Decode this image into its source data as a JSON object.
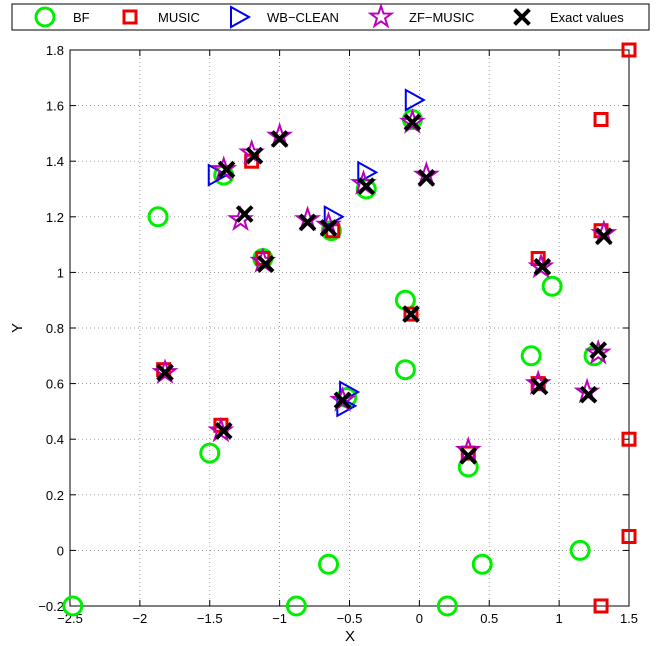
{
  "chart_data": {
    "type": "scatter",
    "title": "",
    "xlabel": "X",
    "ylabel": "Y",
    "xlim": [
      -2.5,
      1.5
    ],
    "ylim": [
      -0.2,
      1.8
    ],
    "xticks": [
      -2.5,
      -2,
      -1.5,
      -1,
      -0.5,
      0,
      0.5,
      1,
      1.5
    ],
    "yticks": [
      -0.2,
      0,
      0.2,
      0.4,
      0.6,
      0.8,
      1,
      1.2,
      1.4,
      1.6,
      1.8
    ],
    "xtick_labels": [
      "−2.5",
      "−2",
      "−1.5",
      "−1",
      "−0.5",
      "0",
      "0.5",
      "1",
      "1.5"
    ],
    "ytick_labels": [
      "−0.2",
      "0",
      "0.2",
      "0.4",
      "0.6",
      "0.8",
      "1",
      "1.2",
      "1.4",
      "1.6",
      "1.8"
    ],
    "grid": true,
    "legend_position": "top",
    "series": [
      {
        "name": "BF",
        "marker": "circle",
        "color": "#00ee00",
        "points": [
          [
            -2.48,
            -0.2
          ],
          [
            -1.87,
            1.2
          ],
          [
            -1.5,
            0.35
          ],
          [
            -1.4,
            1.35
          ],
          [
            -1.12,
            1.05
          ],
          [
            -0.88,
            -0.2
          ],
          [
            -0.65,
            -0.05
          ],
          [
            -0.63,
            1.15
          ],
          [
            -0.52,
            0.55
          ],
          [
            -0.38,
            1.3
          ],
          [
            -0.1,
            0.9
          ],
          [
            -0.1,
            0.65
          ],
          [
            -0.05,
            1.55
          ],
          [
            0.2,
            -0.2
          ],
          [
            0.35,
            0.3
          ],
          [
            0.45,
            -0.05
          ],
          [
            0.8,
            0.7
          ],
          [
            0.95,
            0.95
          ],
          [
            1.15,
            0.0
          ],
          [
            1.25,
            0.7
          ]
        ]
      },
      {
        "name": "MUSIC",
        "marker": "square",
        "color": "#ee0000",
        "points": [
          [
            -1.83,
            0.65
          ],
          [
            -1.42,
            0.45
          ],
          [
            -1.2,
            1.4
          ],
          [
            -1.12,
            1.05
          ],
          [
            -0.62,
            1.15
          ],
          [
            -0.06,
            0.85
          ],
          [
            0.35,
            0.35
          ],
          [
            0.85,
            1.05
          ],
          [
            0.85,
            0.6
          ],
          [
            1.3,
            1.15
          ],
          [
            1.3,
            1.55
          ],
          [
            1.3,
            -0.2
          ],
          [
            1.5,
            1.8
          ],
          [
            1.5,
            0.4
          ],
          [
            1.5,
            0.05
          ]
        ]
      },
      {
        "name": "WB−CLEAN",
        "marker": "triangle-right",
        "color": "#0000ee",
        "points": [
          [
            -1.45,
            1.35
          ],
          [
            -0.62,
            1.2
          ],
          [
            -0.51,
            0.57
          ],
          [
            -0.53,
            0.52
          ],
          [
            -0.38,
            1.36
          ],
          [
            -0.04,
            1.62
          ]
        ]
      },
      {
        "name": "ZF−MUSIC",
        "marker": "star",
        "color": "#bb00bb",
        "points": [
          [
            -1.82,
            0.64
          ],
          [
            -1.42,
            0.43
          ],
          [
            -1.4,
            1.37
          ],
          [
            -1.28,
            1.19
          ],
          [
            -1.2,
            1.43
          ],
          [
            -1.0,
            1.49
          ],
          [
            -1.12,
            1.04
          ],
          [
            -0.8,
            1.19
          ],
          [
            -0.65,
            1.17
          ],
          [
            -0.55,
            0.54
          ],
          [
            -0.4,
            1.32
          ],
          [
            -0.05,
            1.54
          ],
          [
            0.05,
            1.35
          ],
          [
            0.35,
            0.36
          ],
          [
            0.85,
            0.6
          ],
          [
            0.87,
            1.02
          ],
          [
            1.2,
            0.57
          ],
          [
            1.28,
            0.71
          ],
          [
            1.32,
            1.14
          ]
        ]
      },
      {
        "name": "Exact values",
        "marker": "x",
        "color": "#000000",
        "points": [
          [
            -1.82,
            0.64
          ],
          [
            -1.4,
            0.43
          ],
          [
            -1.38,
            1.37
          ],
          [
            -1.25,
            1.21
          ],
          [
            -1.18,
            1.42
          ],
          [
            -1.0,
            1.48
          ],
          [
            -1.1,
            1.03
          ],
          [
            -0.8,
            1.18
          ],
          [
            -0.65,
            1.16
          ],
          [
            -0.55,
            0.54
          ],
          [
            -0.38,
            1.31
          ],
          [
            -0.05,
            1.54
          ],
          [
            0.05,
            1.34
          ],
          [
            -0.06,
            0.85
          ],
          [
            0.35,
            0.34
          ],
          [
            0.86,
            0.59
          ],
          [
            0.88,
            1.02
          ],
          [
            1.21,
            0.56
          ],
          [
            1.28,
            0.72
          ],
          [
            1.32,
            1.13
          ]
        ]
      }
    ]
  }
}
